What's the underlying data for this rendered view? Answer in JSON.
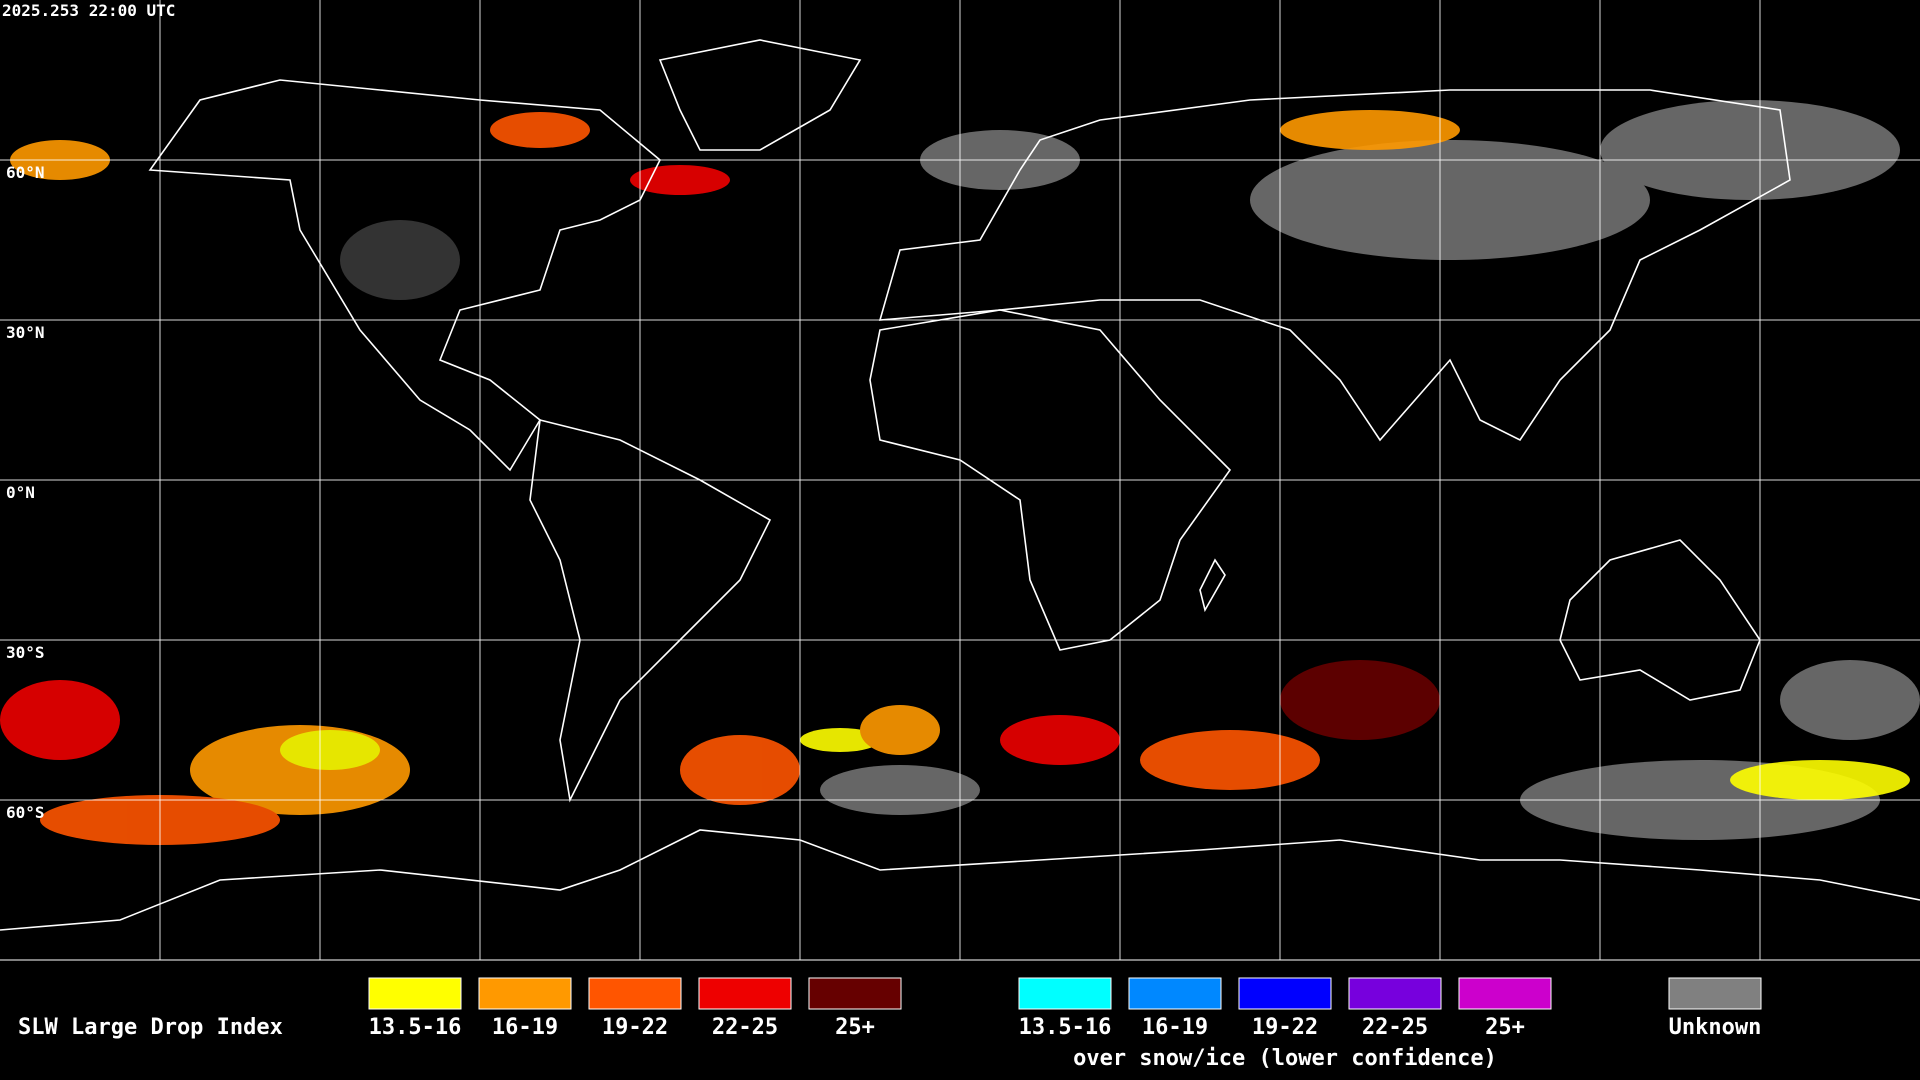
{
  "header": {
    "timestamp": "2025.253 22:00 UTC"
  },
  "map": {
    "latitude_labels": [
      "60°N",
      "30°N",
      "0°N",
      "30°S",
      "60°S"
    ]
  },
  "legend": {
    "title": "SLW Large Drop Index",
    "groups": [
      {
        "items": [
          {
            "label": "13.5-16",
            "color": "#ffff00"
          },
          {
            "label": "16-19",
            "color": "#ff9900"
          },
          {
            "label": "19-22",
            "color": "#ff5500"
          },
          {
            "label": "22-25",
            "color": "#ee0000"
          },
          {
            "label": "25+",
            "color": "#660000"
          }
        ]
      },
      {
        "items": [
          {
            "label": "13.5-16",
            "color": "#00ffff"
          },
          {
            "label": "16-19",
            "color": "#0088ff"
          },
          {
            "label": "19-22",
            "color": "#0000ff"
          },
          {
            "label": "22-25",
            "color": "#7700dd"
          },
          {
            "label": "25+",
            "color": "#cc00cc"
          }
        ],
        "caption": "over snow/ice (lower confidence)"
      },
      {
        "items": [
          {
            "label": "Unknown",
            "color": "#808080"
          }
        ]
      }
    ]
  }
}
